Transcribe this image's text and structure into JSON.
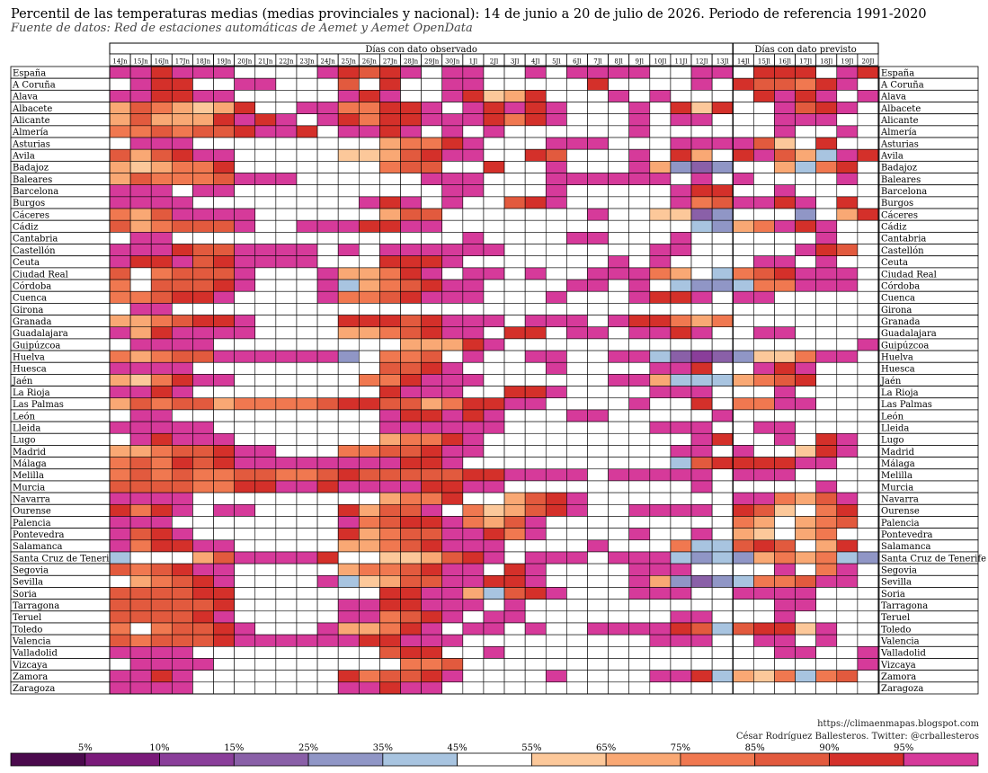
{
  "header": {
    "title": "Percentil de las temperaturas medias (medias provinciales y nacional): 14 de junio a 20 de julio de 2026. Periodo de referencia 1991-2020",
    "subtitle": "Fuente de datos: Red de estaciones automáticas de Aemet y Aemet OpenData"
  },
  "credits": {
    "blog": "https://climaenmapas.blogspot.com",
    "author": "César Rodríguez Ballesteros. Twitter: @crballesteros"
  },
  "legend": {
    "colors": [
      "#4b0a4d",
      "#7a1a7a",
      "#8a3e9a",
      "#8a60a8",
      "#9096c6",
      "#a8c4e0",
      "#ffffff",
      "#fcc89a",
      "#f9a874",
      "#f07850",
      "#e25a3e",
      "#d4302a",
      "#d63a9a"
    ],
    "labels": [
      "5%",
      "10%",
      "15%",
      "25%",
      "35%",
      "45%",
      "55%",
      "65%",
      "75%",
      "85%",
      "90%",
      "95%"
    ]
  },
  "chart_data": {
    "type": "heatmap",
    "group_labels": [
      "Días con dato observado",
      "Días con dato previsto"
    ],
    "group_sizes": [
      30,
      7
    ],
    "dates": [
      "14Jn",
      "15Jn",
      "16Jn",
      "17Jn",
      "18Jn",
      "19Jn",
      "20Jn",
      "21Jn",
      "22Jn",
      "23Jn",
      "24Jn",
      "25Jn",
      "26Jn",
      "27Jn",
      "28Jn",
      "29Jn",
      "30Jn",
      "1Jl",
      "2Jl",
      "3Jl",
      "4Jl",
      "5Jl",
      "6Jl",
      "7Jl",
      "8Jl",
      "9Jl",
      "10Jl",
      "11Jl",
      "12Jl",
      "13Jl",
      "14Jl",
      "15Jl",
      "16Jl",
      "17Jl",
      "18Jl",
      "19Jl",
      "20Jl"
    ],
    "rows": [
      "España",
      "A Coruña",
      "Alava",
      "Albacete",
      "Alicante",
      "Almería",
      "Asturias",
      "Avila",
      "Badajoz",
      "Baleares",
      "Barcelona",
      "Burgos",
      "Cáceres",
      "Cádiz",
      "Cantabria",
      "Castellón",
      "Ceuta",
      "Ciudad Real",
      "Córdoba",
      "Cuenca",
      "Girona",
      "Granada",
      "Guadalajara",
      "Guipúzcoa",
      "Huelva",
      "Huesca",
      "Jaén",
      "La Rioja",
      "Las Palmas",
      "León",
      "Lleida",
      "Lugo",
      "Madrid",
      "Málaga",
      "Melilla",
      "Murcia",
      "Navarra",
      "Ourense",
      "Palencia",
      "Pontevedra",
      "Salamanca",
      "Santa Cruz de Tenerife",
      "Segovia",
      "Sevilla",
      "Soria",
      "Tarragona",
      "Teruel",
      "Toledo",
      "Valencia",
      "Valladolid",
      "Vizcaya",
      "Zamora",
      "Zaragoza"
    ],
    "class_key": [
      "<5",
      "5-10",
      "10-15",
      "15-25",
      "25-35",
      "35-45",
      "45-55",
      "55-65",
      "65-75",
      "75-85",
      "85-90",
      "90-95",
      ">95"
    ],
    "classes": [
      "C C B C C C D D D D C B A B C D C C D D C D C C C C D D C C D B B B D C B",
      "D C B B D D C C D D D A 6 B D D C C D D D D D B D D D D C D B A A 9 B C D",
      "C C B B C C D D D D D C B C D D C B 7 8 B D D D C D C D D D D B C B C D C",
      "8 A 9 8 7 8 B D D C C 9 9 B B C D C B C B C D D D C D B 7 B D D C A B C D",
      "8 A 8 8 8 B C B C D C B 9 B B C C C B 9 B C D D D C D C C D D D C C C D D",
      "9 9 A 9 A A B C C B D C C B C D C D C D D D D D D C D D D D D D C D D C D",
      "D C C C D D D D D D D D D 8 9 9 B C D D D C C C D D D C C C C A 7 6 B D D",
      "A 8 A B C C D D D D D 7 7 8 A B C C D D B A D D D C D B 8 6 B C A 8 5 C B",
      "8 7 8 9 9 B D D D D D 6 6 9 A A D D B D D C D D D C 8 4 3 4 6 6 8 5 9 B D",
      "8 A 9 9 9 A C C C D D D D D D C C C D D D C C C C C C D C D C D D D D C D",
      "C C C D C C D D D D D D D D D D C C D D D C D D D D D C B B D D C D D D D",
      "C C C C D D D D D D D D C B C D C 6 6 A B C D D D D D C 9 A C C B C D B D",
      "9 8 A C C C C D D D D 6 6 8 A A D D D D D D D C D D 7 7 3 4 6 6 6 4 6 8 B",
      "A 8 9 A A A C D D C C C B B C C D D D D D D D D D D 6 6 5 4 8 9 C B C D D",
      "D C C D D D D D D D D D D D D D D C D D D D C C D D D C D D D D D D C D D",
      "C C C B A A C C C C D C D C C C C C C D D D D D D D C C D D D D D C B A D",
      "C B B C A B C C C C D D D B B B C D D D D D D D C D C D D D D C C D C D D",
      "A 6 9 A A A C D D D C 8 8 9 B C D C C D C D D C C C 9 8 6 5 9 A B C C C D",
      "9 6 A A A B C D D D C 5 8 9 A B C C D D D D C C D C 6 5 4 4 5 9 9 C C C D",
      "9 9 A B B C D D D D C 9 9 A B C C C D D D C D D D C B B C D C C D D D D D",
      "D C C D D D D D D D D D D D D D D D D D D D D D D D D D D D D D D D D D D",
      "8 8 9 A B B C D D D D B B B A B C C C D C C C D C B B 9 8 9 D D D D D D D",
      "C 8 B C C C C D D D D 8 8 9 A B C C 6 B B D C C D C C B C D D C C D D D D",
      "D C C C C D D D D D D D D D 8 8 8 B C D D D D D D D D D D D D D D D D D C",
      "9 8 9 A A C C C C C C 4 6 9 9 A D C D D C C D D C C 5 3 2 3 4 7 7 9 C C D",
      "C C C C D D D D D D D D D A A B C D D D D C D D D D C C B D D C B C D D D",
      "8 7 9 B C C D D D D D 6 9 9 B C C C D D D D D D C C 8 5 5 5 8 9 A B D D D",
      "C C B C D D D D D D D D D B C C C 6 6 B B C D D D D C C C D D D C D D D D",
      "8 A 9 A A 8 9 9 9 9 A B B A A 8 9 B B C C D D D D C D D B 6 9 9 C C D D D",
      "D C C D D D D D D D D D D C B B C B C D D D C C D D D D D C D D D D D D D",
      "C C C C C D D D D D D D D C C C C C C D D D D D D D C C C D D C C D D D D",
      "D C B C C C D D D D D D D 8 9 9 B C D D D D D D D D D D C B D D C 6 B C D",
      "8 8 9 A A B C C D D D 9 9 A A B C C D D D D D D D D D C C 6 C D D 7 B C D",
      "9 A 9 B A B C C C C C C C C B B C D D D D D D D D D D 5 A B B B B C C D D",
      "9 A 9 A 9 9 A A 9 9 A B A A A A A B B C C C C D C C C C C D C C C D D D D",
      "A A A A 9 9 B B C C B C C C C B B C C D D D D D D D D D C D D D D D C D D",
      "C C C C D D D D D D D D D 8 9 9 B 6 6 8 A B C D D D D D D D C C 9 8 A C D",
      "B 9 B C D C C D D D D B 8 A A C D 9 7 8 A B C D D C C C C 6 B A 7 6 9 B D",
      "C C C D D D D D D D D C 9 A B B C 9 8 A C D D D D D D D D 6 9 8 6 8 9 A D",
      "C A B C D D D D D D D B 8 9 A A C C B 9 C D D D D C D D C 6 8 7 6 8 9 D D",
      "C 9 B B C C D D D D D 8 8 9 A B C C C D D D D C D D D 9 5 5 A B A 6 8 B D",
      "5 6 6 6 8 A C C C C B 6 6 7 7 8 A B C D C C C D C C C 5 4 5 4 8 9 8 9 5 4",
      "A 9 A B C C D D D D D 8 9 9 A B C C 6 B C D D D D C C C D D D D C 6 9 C D",
      "6 8 9 A B C D D D D C 5 7 8 A A C C B B C D D D D C 8 4 3 4 5 9 9 A C C D",
      "A A A A B B D D D D D D D B B C C 8 5 A B C D D D C C C D D C C C C D D D",
      "A A A A A B D D D D D C C B B C C C 6 C D D D D D D D D D D D D C C D D D",
      "A A A A B C D D D D D C C 9 A B C 6 C C D D D D D D D C C D D D C D D D D",
      "9 6 9 A A B C D D D C 8 8 9 B C D C C D C D D C C C C B A 5 A B B 7 C D D",
      "A 9 A A A B C C C C C C B B C C C D D D D D D D D D C C C D D C C D C D D",
      "C C C C D D D D D D D D D A B B D D C D D D D D D D D D D 6 D D C C D D C",
      "D C C C C D D D D D D D D D 9 9 A D D D D D D D D D D D D D D D D D D D C",
      "C C B C D D D D D D D B 9 A A B C D D D D C D D D D C C B 5 8 7 9 5 9 A D",
      "C C C C D D D D D D D C C B C C D D D D D D D D D D D D D D D D D D D D D"
    ]
  }
}
